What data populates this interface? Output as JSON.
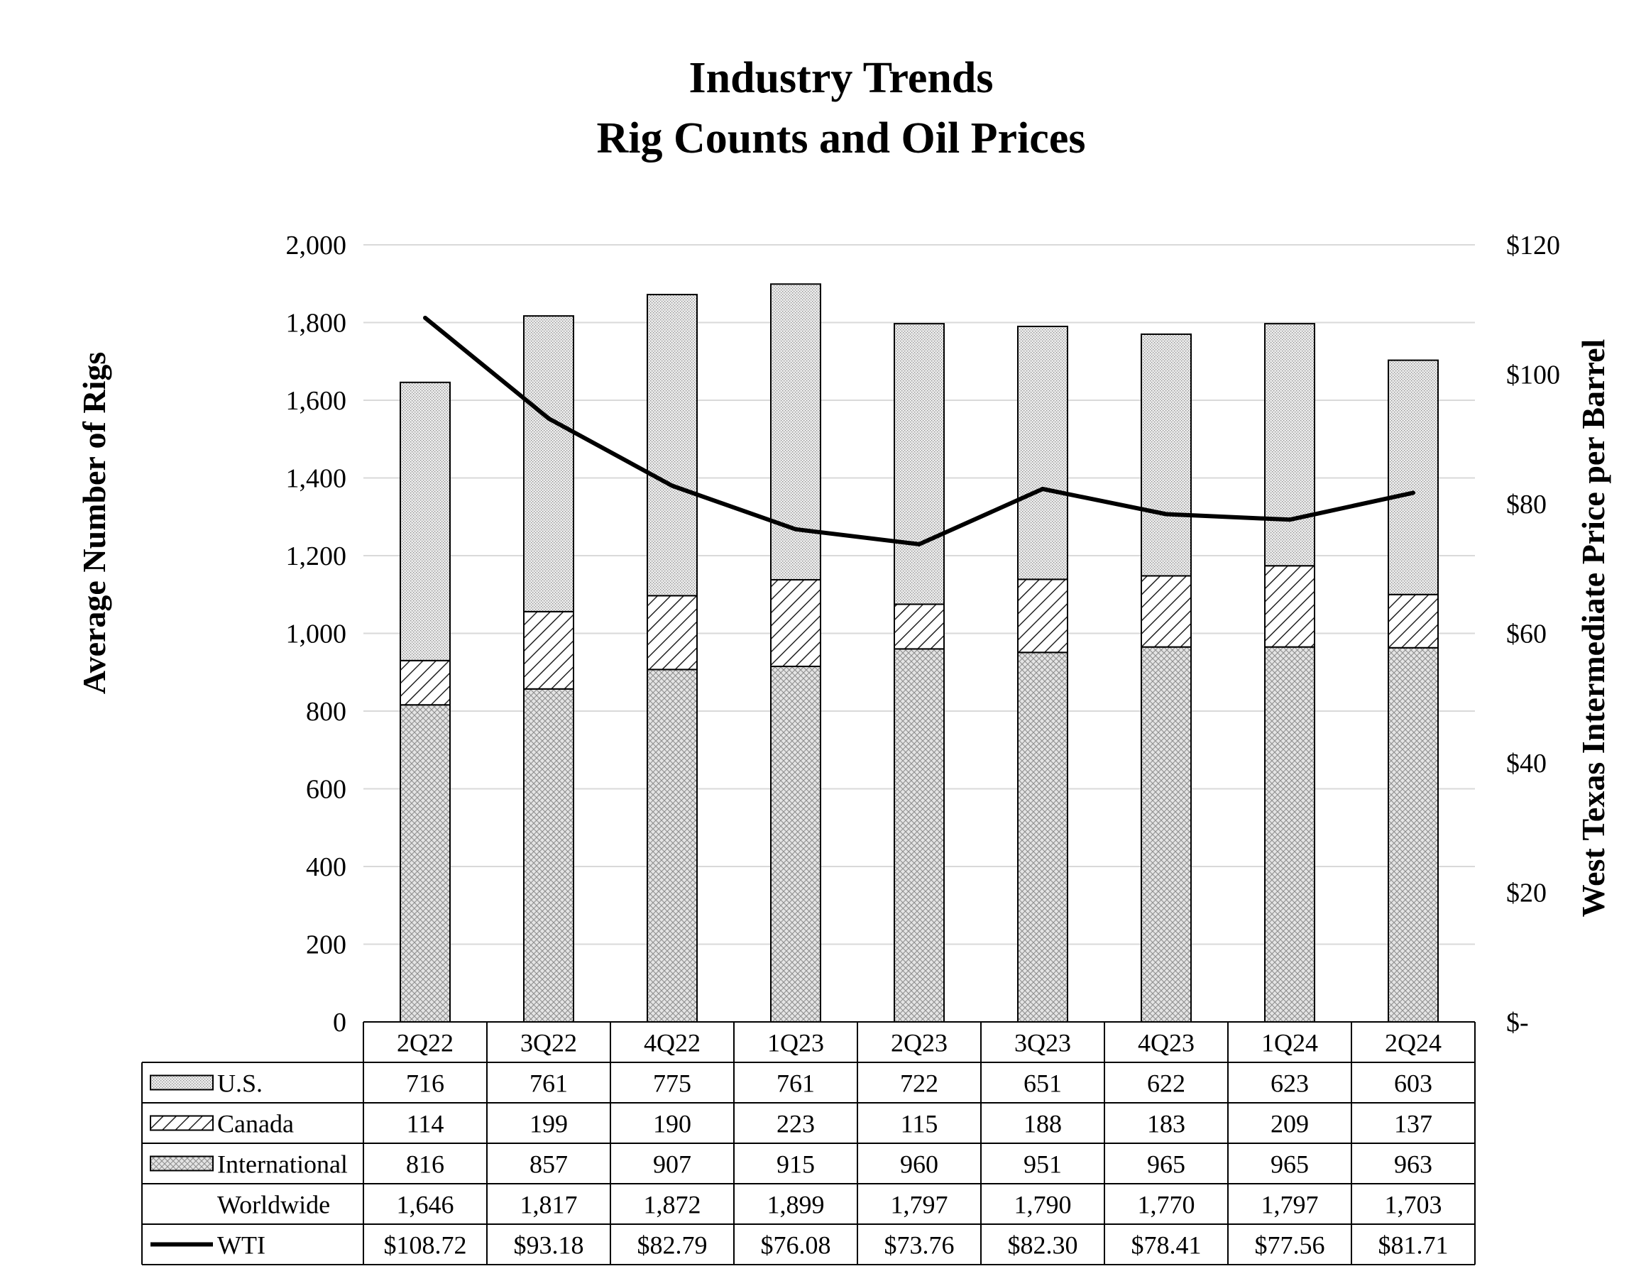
{
  "chart_data": {
    "type": "bar",
    "subtype": "stacked-bar-with-line",
    "title": "Industry Trends",
    "subtitle": "Rig Counts and Oil Prices",
    "ylabel": "Average Number of Rigs",
    "y2label": "West Texas Intermediate Price per Barrel",
    "ylim": [
      0,
      2000
    ],
    "y2lim": [
      0,
      120
    ],
    "yticks": [
      "0",
      "200",
      "400",
      "600",
      "800",
      "1,000",
      "1,200",
      "1,400",
      "1,600",
      "1,800",
      "2,000"
    ],
    "y2ticks": [
      "$-",
      "$20",
      "$40",
      "$60",
      "$80",
      "$100",
      "$120"
    ],
    "grid": true,
    "categories": [
      "2Q22",
      "3Q22",
      "4Q22",
      "1Q23",
      "2Q23",
      "3Q23",
      "4Q23",
      "1Q24",
      "2Q24"
    ],
    "series": [
      {
        "name": "International",
        "pattern": "cross",
        "values": [
          816,
          857,
          907,
          915,
          960,
          951,
          965,
          965,
          963
        ]
      },
      {
        "name": "Canada",
        "pattern": "diagonal",
        "values": [
          114,
          199,
          190,
          223,
          115,
          188,
          183,
          209,
          137
        ]
      },
      {
        "name": "U.S.",
        "pattern": "dots",
        "values": [
          716,
          761,
          775,
          761,
          722,
          651,
          622,
          623,
          603
        ]
      }
    ],
    "line": {
      "name": "WTI",
      "axis": "right",
      "values": [
        108.72,
        93.18,
        82.79,
        76.08,
        73.76,
        82.3,
        78.41,
        77.56,
        81.71
      ]
    },
    "table": {
      "rows": [
        {
          "label": "U.S.",
          "legend": "dots",
          "cells": [
            "716",
            "761",
            "775",
            "761",
            "722",
            "651",
            "622",
            "623",
            "603"
          ]
        },
        {
          "label": "Canada",
          "legend": "diagonal",
          "cells": [
            "114",
            "199",
            "190",
            "223",
            "115",
            "188",
            "183",
            "209",
            "137"
          ]
        },
        {
          "label": "International",
          "legend": "cross",
          "cells": [
            "816",
            "857",
            "907",
            "915",
            "960",
            "951",
            "965",
            "965",
            "963"
          ]
        },
        {
          "label": "Worldwide",
          "legend": "none",
          "cells": [
            "1,646",
            "1,817",
            "1,872",
            "1,899",
            "1,797",
            "1,790",
            "1,770",
            "1,797",
            "1,703"
          ]
        },
        {
          "label": "WTI",
          "legend": "line",
          "cells": [
            "$108.72",
            "$93.18",
            "$82.79",
            "$76.08",
            "$73.76",
            "$82.30",
            "$78.41",
            "$77.56",
            "$81.71"
          ]
        }
      ]
    }
  }
}
